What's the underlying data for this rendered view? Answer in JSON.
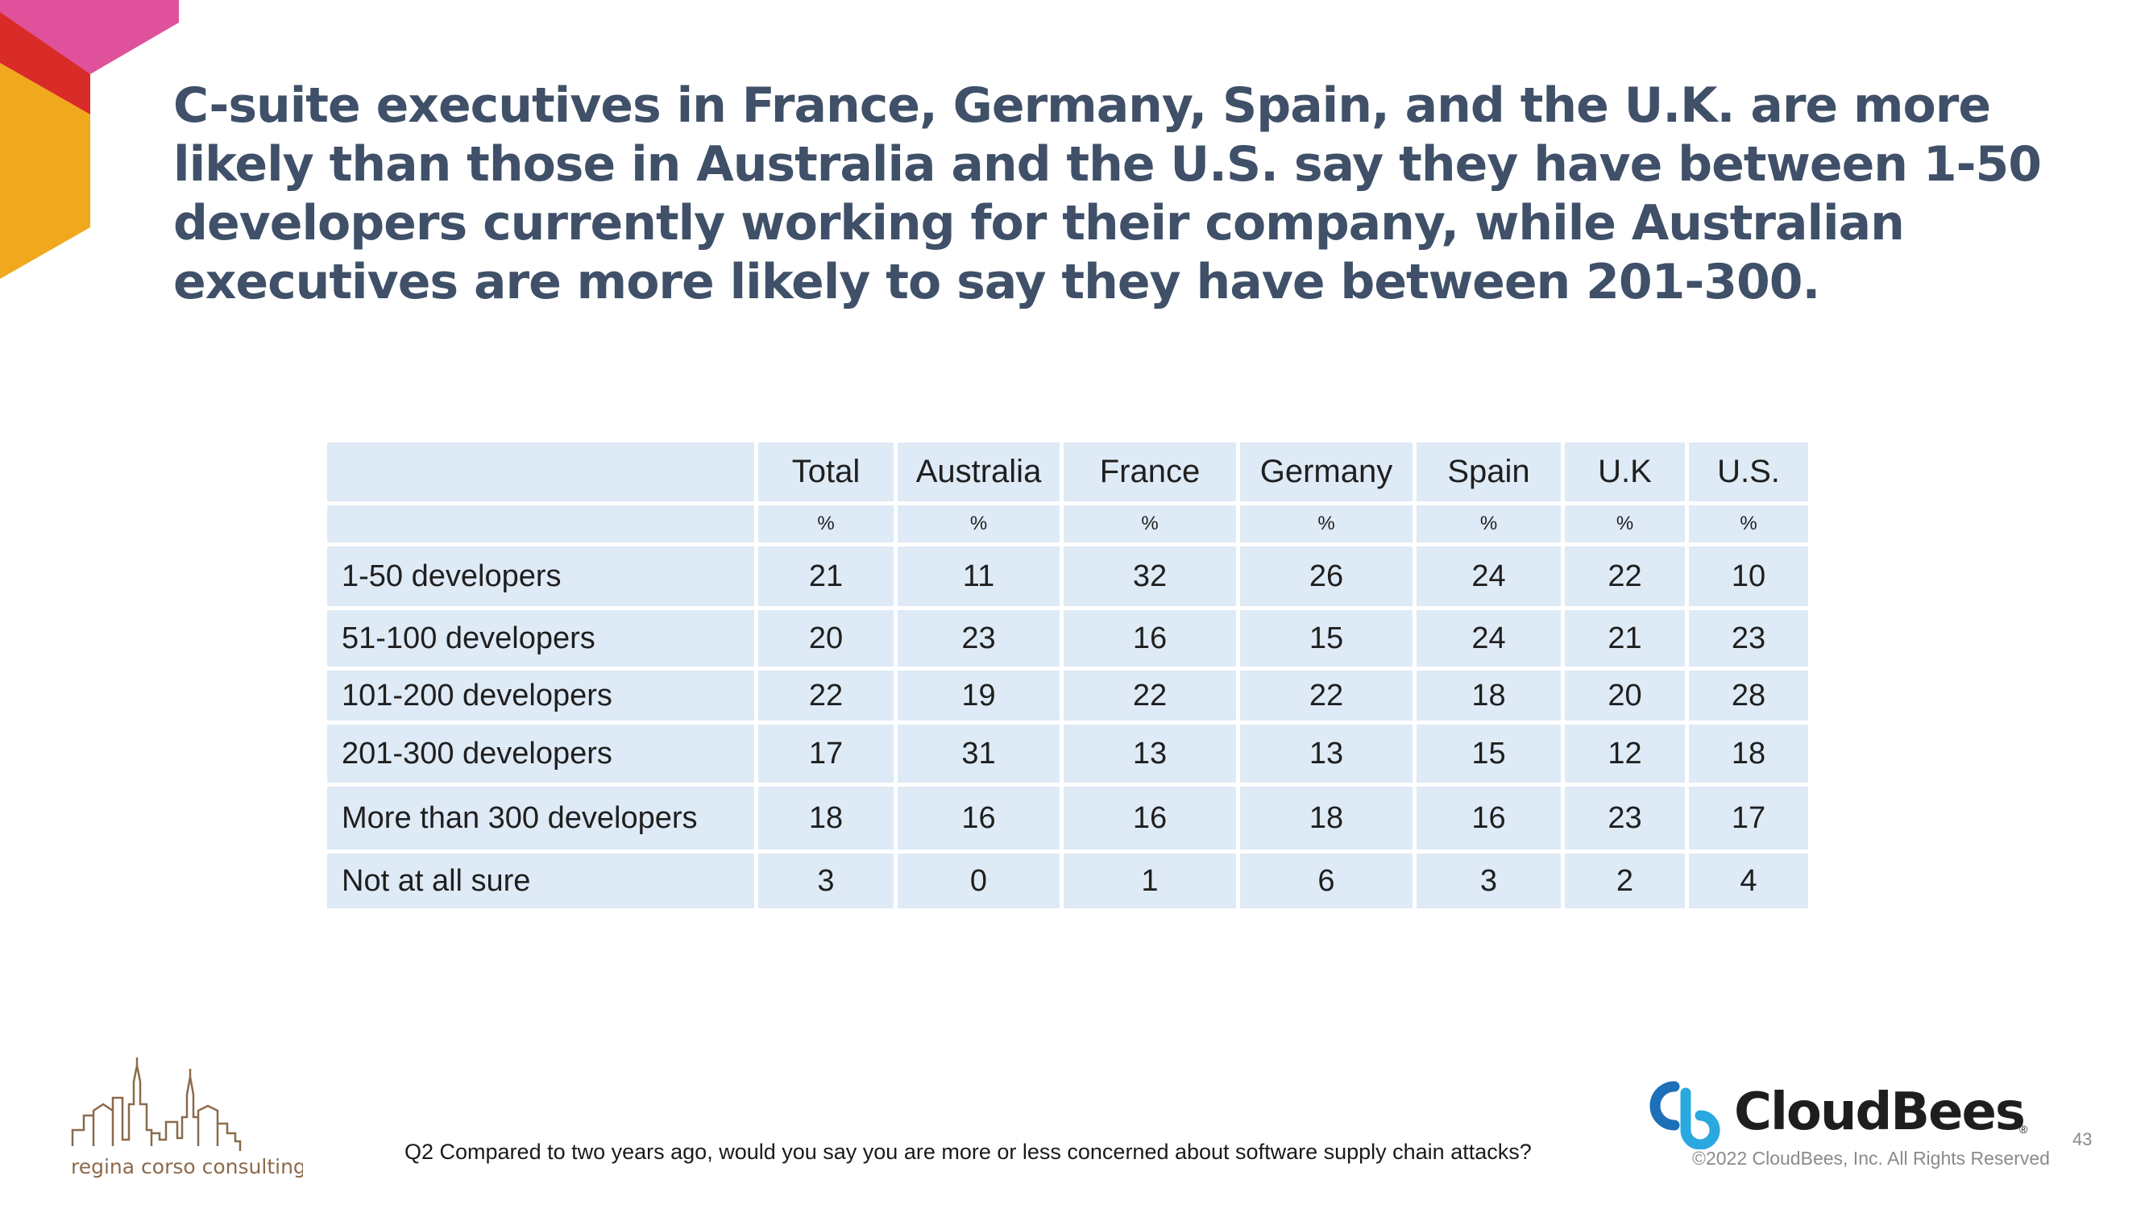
{
  "headline": "C-suite executives in France, Germany, Spain, and the U.K. are more likely than those in Australia and the U.S. say they have between 1-50 developers currently working for their company, while Australian executives are more likely to say they have between 201-300.",
  "table": {
    "columns": [
      "Total",
      "Australia",
      "France",
      "Germany",
      "Spain",
      "U.K",
      "U.S."
    ],
    "unit_row": [
      "%",
      "%",
      "%",
      "%",
      "%",
      "%",
      "%"
    ],
    "rows": [
      {
        "label": "1-50 developers",
        "values": [
          "21",
          "11",
          "32",
          "26",
          "24",
          "22",
          "10"
        ]
      },
      {
        "label": "51-100 developers",
        "values": [
          "20",
          "23",
          "16",
          "15",
          "24",
          "21",
          "23"
        ]
      },
      {
        "label": "101-200 developers",
        "values": [
          "22",
          "19",
          "22",
          "22",
          "18",
          "20",
          "28"
        ]
      },
      {
        "label": "201-300 developers",
        "values": [
          "17",
          "31",
          "13",
          "13",
          "15",
          "12",
          "18"
        ]
      },
      {
        "label": "More than 300 developers",
        "values": [
          "18",
          "16",
          "16",
          "18",
          "16",
          "23",
          "17"
        ]
      },
      {
        "label": "Not at all sure",
        "values": [
          "3",
          "0",
          "1",
          "6",
          "3",
          "2",
          "4"
        ]
      }
    ]
  },
  "footnote": "Q2 Compared to two years ago, would you say you are more or less concerned about software supply chain attacks?",
  "logo_left": {
    "text": "regina corso consulting",
    "icon": "city-skyline-icon"
  },
  "brand": {
    "name": "CloudBees",
    "registered": "®",
    "icon": "cloudbees-logo-icon"
  },
  "copyright": "©2022 CloudBees, Inc. All Rights Reserved",
  "page_number": "43",
  "colors": {
    "headline": "#3f5068",
    "table_cell": "#deeaf6",
    "accent_pink": "#e0519c",
    "accent_red": "#d92b27",
    "accent_orange": "#f0a81c",
    "brand_blue": "#2aa8e0",
    "logo_brown": "#8b6a4b"
  }
}
